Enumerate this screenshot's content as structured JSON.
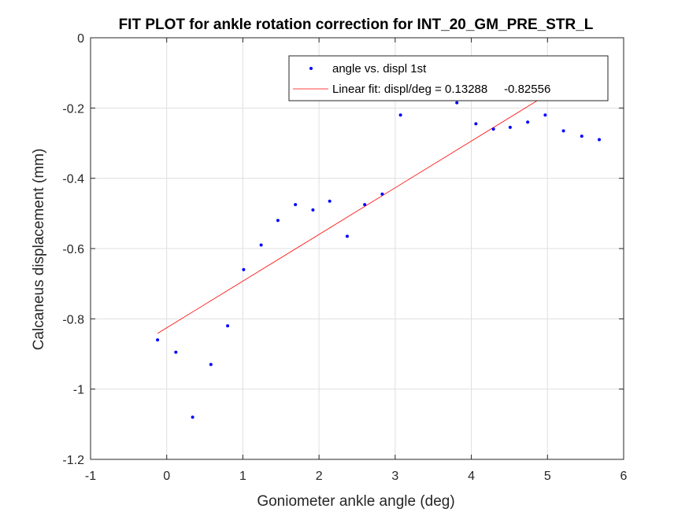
{
  "chart_data": {
    "type": "scatter",
    "title": "FIT PLOT for ankle rotation correction for INT_20_GM_PRE_STR_L",
    "xlabel": "Goniometer ankle angle (deg)",
    "ylabel": "Calcaneus displacement (mm)",
    "xlim": [
      -1,
      6
    ],
    "ylim": [
      -1.2,
      0
    ],
    "xticks": [
      -1,
      0,
      1,
      2,
      3,
      4,
      5,
      6
    ],
    "xtick_labels": [
      "-1",
      "0",
      "1",
      "2",
      "3",
      "4",
      "5",
      "6"
    ],
    "yticks": [
      -1.2,
      -1,
      -0.8,
      -0.6,
      -0.4,
      -0.2,
      0
    ],
    "ytick_labels": [
      "-1.2",
      "-1",
      "-0.8",
      "-0.6",
      "-0.4",
      "-0.2",
      "0"
    ],
    "grid": true,
    "legend_position": "top-right",
    "series": [
      {
        "name": "angle vs. displ 1st",
        "kind": "scatter",
        "color": "#0000ff",
        "x": [
          -0.12,
          0.12,
          0.34,
          0.58,
          0.8,
          1.01,
          1.24,
          1.46,
          1.69,
          1.92,
          2.14,
          2.37,
          2.6,
          2.83,
          3.07,
          3.81,
          4.06,
          4.29,
          4.51,
          4.74,
          4.97,
          5.21,
          5.45,
          5.68
        ],
        "y": [
          -0.86,
          -0.895,
          -1.08,
          -0.93,
          -0.82,
          -0.66,
          -0.59,
          -0.52,
          -0.475,
          -0.49,
          -0.465,
          -0.565,
          -0.475,
          -0.445,
          -0.22,
          -0.185,
          -0.245,
          -0.26,
          -0.255,
          -0.24,
          -0.22,
          -0.265,
          -0.28,
          -0.29
        ]
      },
      {
        "name": "Linear fit: displ/deg = 0.13288     -0.82556",
        "kind": "line",
        "color": "#ff0000",
        "slope": 0.13288,
        "intercept": -0.82556,
        "x": [
          -0.12,
          5.0
        ]
      }
    ]
  }
}
